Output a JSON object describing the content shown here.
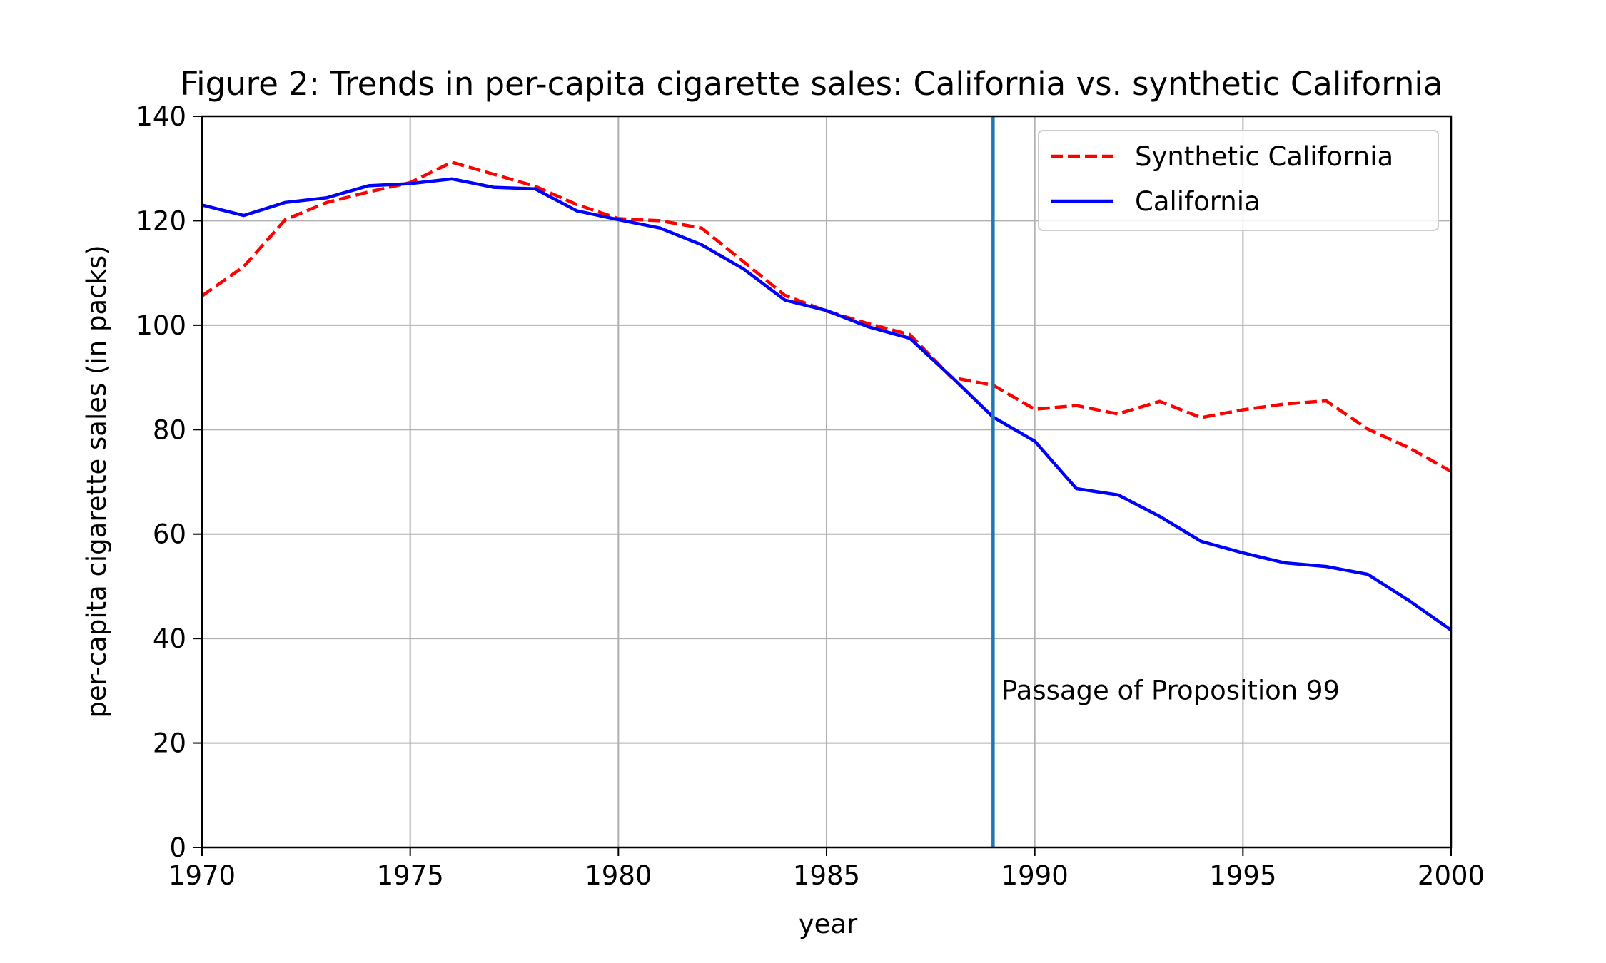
{
  "chart_data": {
    "type": "line",
    "title": "Figure 2: Trends in per-capita cigarette sales: California vs. synthetic California",
    "xlabel": "year",
    "ylabel": "per-capita cigarette sales (in packs)",
    "xlim": [
      1970,
      2000
    ],
    "ylim": [
      0,
      140
    ],
    "xticks": [
      1970,
      1975,
      1980,
      1985,
      1990,
      1995,
      2000
    ],
    "yticks": [
      0,
      20,
      40,
      60,
      80,
      100,
      120,
      140
    ],
    "grid": true,
    "legend_position": "top-right",
    "x": [
      1970,
      1971,
      1972,
      1973,
      1974,
      1975,
      1976,
      1977,
      1978,
      1979,
      1980,
      1981,
      1982,
      1983,
      1984,
      1985,
      1986,
      1987,
      1988,
      1989,
      1990,
      1991,
      1992,
      1993,
      1994,
      1995,
      1996,
      1997,
      1998,
      1999,
      2000
    ],
    "series": [
      {
        "name": "Synthetic California",
        "color": "#ff0000",
        "style": "dashed",
        "values": [
          105.6,
          111.2,
          120.2,
          123.5,
          125.5,
          127.3,
          131.2,
          128.9,
          126.6,
          123.1,
          120.4,
          120.0,
          118.6,
          112.2,
          105.7,
          102.7,
          100.3,
          98.2,
          90.0,
          88.5,
          83.9,
          84.6,
          83.0,
          85.4,
          82.3,
          83.8,
          84.9,
          85.5,
          80.1,
          76.5,
          72.0
        ]
      },
      {
        "name": "California",
        "color": "#0000ff",
        "style": "solid",
        "values": [
          123.0,
          121.0,
          123.5,
          124.4,
          126.7,
          127.1,
          128.0,
          126.4,
          126.1,
          121.9,
          120.2,
          118.6,
          115.4,
          110.8,
          104.8,
          102.8,
          99.7,
          97.5,
          90.1,
          82.4,
          77.8,
          68.7,
          67.5,
          63.4,
          58.6,
          56.4,
          54.5,
          53.8,
          52.3,
          47.2,
          41.6
        ]
      }
    ],
    "vline": {
      "x": 1989,
      "color": "#1f77b4"
    },
    "annotation": {
      "text": "Passage of Proposition 99",
      "x": 1989.2,
      "y": 30
    }
  }
}
